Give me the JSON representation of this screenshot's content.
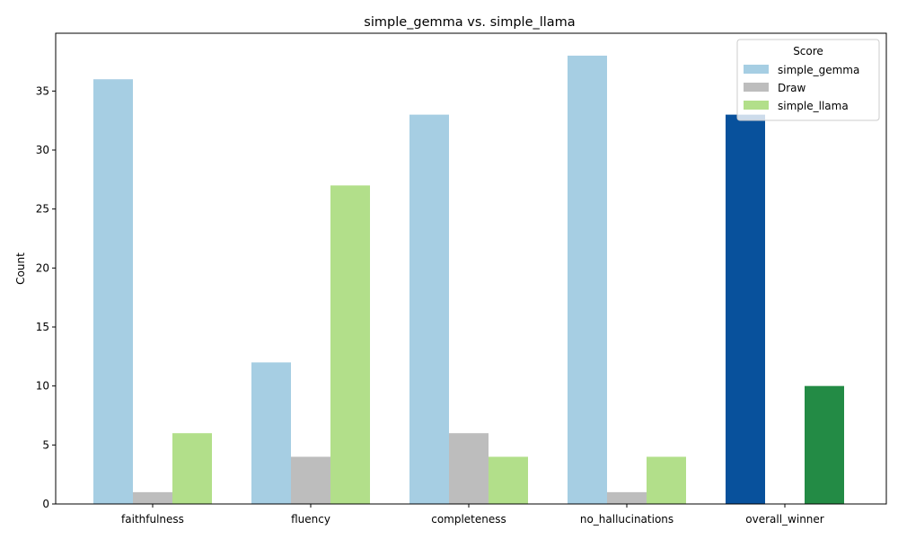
{
  "chart_data": {
    "type": "bar",
    "title": "simple_gemma vs. simple_llama",
    "xlabel": "",
    "ylabel": "Count",
    "ylim": [
      0,
      39.9
    ],
    "yticks": [
      0,
      5,
      10,
      15,
      20,
      25,
      30,
      35
    ],
    "categories": [
      "faithfulness",
      "fluency",
      "completeness",
      "no_hallucinations",
      "overall_winner"
    ],
    "series": [
      {
        "name": "simple_gemma",
        "color": "#a6cee3",
        "values": [
          36,
          12,
          33,
          38,
          33
        ]
      },
      {
        "name": "Draw",
        "color": "#bdbdbd",
        "values": [
          1,
          4,
          6,
          1,
          0
        ]
      },
      {
        "name": "simple_llama",
        "color": "#b2df8a",
        "values": [
          6,
          27,
          4,
          4,
          10
        ]
      }
    ],
    "highlight": {
      "category": "overall_winner",
      "colors": {
        "simple_gemma": "#08519c",
        "simple_llama": "#238b45"
      }
    },
    "legend": {
      "title": "Score",
      "position": "top-right"
    },
    "grid": false
  }
}
